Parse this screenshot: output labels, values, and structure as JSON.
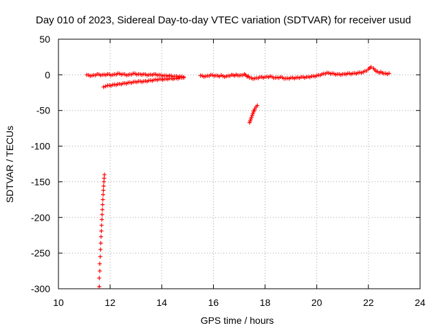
{
  "chart_data": {
    "type": "scatter",
    "title": "Day 010 of 2023, Sidereal Day-to-day VTEC variation (SDTVAR) for receiver usud",
    "xlabel": "GPS time / hours",
    "ylabel": "SDTVAR / TECUs",
    "xlim": [
      10,
      24
    ],
    "ylim": [
      -300,
      50
    ],
    "xticks": [
      10,
      12,
      14,
      16,
      18,
      20,
      22,
      24
    ],
    "yticks": [
      -300,
      -250,
      -200,
      -150,
      -100,
      -50,
      0,
      50
    ],
    "grid": true,
    "marker": "+",
    "series_color": "#ff0000",
    "series": [
      {
        "name": "main band",
        "x": [
          11.1,
          11.3,
          11.5,
          11.7,
          11.9,
          12.1,
          12.3,
          12.5,
          12.7,
          12.9,
          13.1,
          13.3,
          13.5,
          13.7,
          13.9,
          14.1,
          14.3,
          14.5,
          14.7,
          14.85,
          15.5,
          15.7,
          15.9,
          16.1,
          16.5,
          16.7,
          17.0,
          17.2,
          17.4,
          17.6,
          17.8,
          18.0,
          18.2,
          18.4,
          18.6,
          18.8,
          19.0,
          19.2,
          19.4,
          19.6,
          19.8,
          20.0,
          20.2,
          20.4,
          20.6,
          20.8,
          21.0,
          21.2,
          21.4,
          21.6,
          21.8,
          22.0,
          22.1,
          22.2,
          22.3,
          22.6,
          22.8
        ],
        "y": [
          0,
          -1,
          1,
          0,
          1,
          0,
          2,
          1,
          0,
          2,
          1,
          1,
          0,
          1,
          0,
          -1,
          -1,
          -2,
          -2,
          -3,
          -1,
          -2,
          0,
          -1,
          -2,
          0,
          -1,
          1,
          -4,
          -5,
          -3,
          -3,
          -2,
          -4,
          -3,
          -5,
          -4,
          -4,
          -3,
          -3,
          -2,
          -1,
          1,
          3,
          2,
          1,
          1,
          2,
          2,
          3,
          4,
          8,
          11,
          9,
          5,
          2,
          2
        ]
      },
      {
        "name": "lower band",
        "x": [
          11.75,
          11.9,
          12.1,
          12.3,
          12.5,
          12.7,
          12.9,
          13.1,
          13.3,
          13.5,
          13.7,
          13.9,
          14.1,
          14.3,
          14.5,
          14.7,
          14.85
        ],
        "y": [
          -17,
          -15,
          -14,
          -13,
          -12,
          -11,
          -10,
          -9,
          -9,
          -8,
          -7,
          -6,
          -6,
          -5,
          -5,
          -4,
          -4
        ]
      },
      {
        "name": "descending arc",
        "x": [
          17.4,
          17.45,
          17.5,
          17.55,
          17.6,
          17.65,
          17.7
        ],
        "y": [
          -67,
          -62,
          -57,
          -52,
          -48,
          -45,
          -43
        ]
      },
      {
        "name": "steep branch",
        "x": [
          11.58,
          11.58,
          11.6,
          11.6,
          11.62,
          11.63,
          11.64,
          11.65,
          11.66,
          11.67,
          11.68,
          11.69,
          11.7,
          11.71,
          11.72,
          11.73,
          11.74,
          11.75,
          11.76,
          11.77,
          11.78
        ],
        "y": [
          -297,
          -285,
          -275,
          -265,
          -255,
          -245,
          -236,
          -227,
          -219,
          -211,
          -203,
          -196,
          -189,
          -182,
          -175,
          -168,
          -162,
          -156,
          -150,
          -145,
          -140
        ]
      }
    ]
  }
}
